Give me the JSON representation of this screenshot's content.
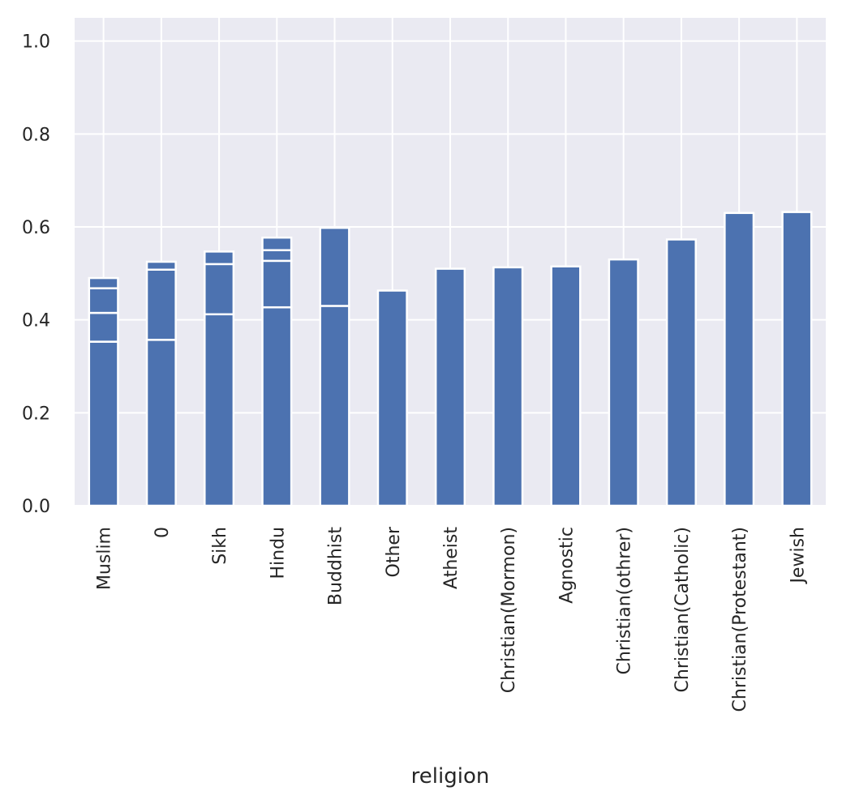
{
  "chart_data": {
    "type": "bar",
    "stacked": true,
    "xlabel": "religion",
    "ylabel": "",
    "ylim": [
      0,
      1.05
    ],
    "yticks": [
      "0.0",
      "0.2",
      "0.4",
      "0.6",
      "0.8",
      "1.0"
    ],
    "ytick_values": [
      0,
      0.2,
      0.4,
      0.6,
      0.8,
      1.0
    ],
    "grid": true,
    "legend": "none",
    "bar_color": "#4c72b0",
    "background_color": "#eaeaf2",
    "grid_color": "#ffffff",
    "categories": [
      "Muslim",
      "0",
      "Sikh",
      "Hindu",
      "Buddhist",
      "Other",
      "Atheist",
      "Christian(Mormon)",
      "Agnostic",
      "Christian(othrer)",
      "Christian(Catholic)",
      "Christian(Protestant)",
      "Jewish"
    ],
    "segment_tops": [
      [
        0.353,
        0.415,
        0.468,
        0.49
      ],
      [
        0.357,
        0.508,
        0.525
      ],
      [
        0.412,
        0.52,
        0.547
      ],
      [
        0.427,
        0.527,
        0.55,
        0.577
      ],
      [
        0.43,
        0.598
      ],
      [
        0.463
      ],
      [
        0.51
      ],
      [
        0.513
      ],
      [
        0.515
      ],
      [
        0.53
      ],
      [
        0.573
      ],
      [
        0.63
      ],
      [
        0.632
      ]
    ]
  }
}
